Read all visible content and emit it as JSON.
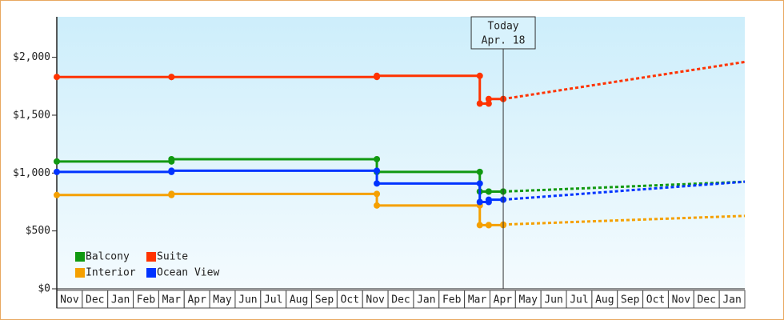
{
  "chart_data": {
    "type": "step-line",
    "x": [
      0,
      4.5,
      12.56,
      16.6,
      16.95,
      17.52
    ],
    "xlim": [
      0,
      27
    ],
    "categories": [
      "Nov",
      "Dec",
      "Jan",
      "Feb",
      "Mar",
      "Apr",
      "May",
      "Jun",
      "Jul",
      "Aug",
      "Sep",
      "Oct",
      "Nov",
      "Dec",
      "Jan",
      "Feb",
      "Mar",
      "Apr",
      "May",
      "Jun",
      "Jul",
      "Aug",
      "Sep",
      "Oct",
      "Nov",
      "Dec",
      "Jan"
    ],
    "ylim": [
      0,
      2350
    ],
    "yticks": [
      {
        "value": 0,
        "label": "$0"
      },
      {
        "value": 500,
        "label": "$500"
      },
      {
        "value": 1000,
        "label": "$1,000"
      },
      {
        "value": 1500,
        "label": "$1,500"
      },
      {
        "value": 2000,
        "label": "$2,000"
      }
    ],
    "projection_x": [
      17.52,
      27
    ],
    "series": [
      {
        "name": "Balcony",
        "color": "#119911",
        "values": [
          1100,
          1120,
          1010,
          840,
          840,
          840
        ],
        "projection": [
          840,
          925
        ]
      },
      {
        "name": "Suite",
        "color": "#ff3300",
        "values": [
          1830,
          1830,
          1840,
          1600,
          1640,
          1640
        ],
        "projection": [
          1640,
          1960
        ]
      },
      {
        "name": "Interior",
        "color": "#f5a000",
        "values": [
          810,
          820,
          720,
          550,
          550,
          555
        ],
        "projection": [
          555,
          630
        ]
      },
      {
        "name": "Ocean View",
        "color": "#0033ff",
        "values": [
          1010,
          1020,
          910,
          750,
          770,
          770
        ],
        "projection": [
          770,
          925
        ]
      }
    ],
    "annotation": {
      "lines": [
        "Today",
        "Apr. 18"
      ],
      "x": 17.52
    }
  }
}
